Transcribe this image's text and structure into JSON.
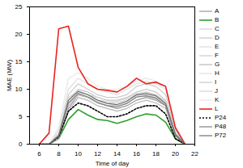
{
  "chart_data": {
    "type": "line",
    "xlabel": "Time of day",
    "ylabel": "MAE (MW)",
    "x": [
      6,
      7,
      8,
      9,
      10,
      11,
      12,
      13,
      14,
      15,
      16,
      17,
      18,
      19,
      20,
      21
    ],
    "xlim": [
      5,
      22
    ],
    "xticks": [
      6,
      8,
      10,
      12,
      14,
      16,
      18,
      20,
      22
    ],
    "ylim": [
      0,
      25
    ],
    "yticks": [
      0,
      5,
      10,
      15,
      20,
      25
    ],
    "grid": false,
    "legend": "right",
    "series": [
      {
        "name": "A",
        "color": "#9a9a9a",
        "line_style": "solid",
        "values": [
          0,
          0,
          1,
          6.5,
          9,
          8.5,
          7.5,
          7,
          6.5,
          7,
          8,
          8.5,
          8,
          7,
          1.5,
          0
        ]
      },
      {
        "name": "B",
        "color": "#2ca02c",
        "line_style": "solid",
        "values": [
          0,
          0,
          1,
          4.5,
          6.3,
          5.3,
          4.5,
          4.3,
          3.8,
          4.3,
          5,
          5.5,
          5.3,
          4,
          1,
          0
        ]
      },
      {
        "name": "C",
        "color": "#d0d0d0",
        "line_style": "solid",
        "values": [
          0,
          0,
          1,
          7,
          9.5,
          9,
          8,
          7.5,
          7.5,
          8,
          9,
          9.5,
          9,
          7.5,
          2,
          0
        ]
      },
      {
        "name": "D",
        "color": "#c4c4c4",
        "line_style": "solid",
        "values": [
          0,
          0,
          1.5,
          8,
          10,
          9.5,
          8.5,
          8,
          8,
          8.5,
          9.5,
          10,
          9.5,
          8,
          2,
          0
        ]
      },
      {
        "name": "E",
        "color": "#dadada",
        "line_style": "solid",
        "values": [
          0,
          0,
          1.2,
          7.5,
          9.3,
          8.5,
          8,
          7.8,
          7.5,
          8,
          8.8,
          9,
          8.5,
          7,
          1.8,
          0
        ]
      },
      {
        "name": "F",
        "color": "#cccccc",
        "line_style": "solid",
        "values": [
          0,
          0,
          2,
          9,
          11,
          10,
          9,
          8.5,
          8.5,
          9,
          10.5,
          11,
          10.5,
          9,
          2.5,
          0
        ]
      },
      {
        "name": "G",
        "color": "#b8b8b8",
        "line_style": "solid",
        "values": [
          0,
          0,
          1,
          6,
          8.5,
          8,
          7,
          6.5,
          6,
          6.5,
          7.5,
          8,
          7.5,
          6.5,
          1.5,
          0
        ]
      },
      {
        "name": "H",
        "color": "#e0e0e0",
        "line_style": "solid",
        "values": [
          0,
          0,
          2.5,
          10,
          12,
          11,
          10,
          9.5,
          9,
          10,
          11,
          11.5,
          11,
          10,
          3,
          0
        ]
      },
      {
        "name": "I",
        "color": "#c8c8c8",
        "line_style": "solid",
        "values": [
          0,
          0,
          1.5,
          7,
          9,
          8.5,
          7.5,
          7,
          7,
          7.5,
          8.5,
          8.8,
          8.2,
          7.2,
          1.6,
          0
        ]
      },
      {
        "name": "J",
        "color": "#d4d4d4",
        "line_style": "solid",
        "values": [
          0,
          0,
          1.8,
          8.5,
          9.8,
          9,
          8.5,
          8,
          7.8,
          8.3,
          9.2,
          9.5,
          9,
          7.8,
          2,
          0
        ]
      },
      {
        "name": "K",
        "color": "#e6e6e6",
        "line_style": "solid",
        "values": [
          0,
          0,
          3,
          12,
          13,
          12,
          10.5,
          10,
          10,
          10.5,
          11.5,
          12,
          11.5,
          10.5,
          3.5,
          0
        ]
      },
      {
        "name": "L",
        "color": "#e8231e",
        "line_style": "solid",
        "values": [
          0,
          2,
          21,
          21.5,
          14,
          11,
          10,
          9.8,
          9.5,
          10.5,
          12,
          11,
          11.3,
          10.5,
          3,
          0
        ]
      },
      {
        "name": "P24",
        "color": "#000000",
        "line_style": "dotted",
        "values": [
          0,
          0,
          1.3,
          6,
          7.5,
          7,
          6,
          5,
          5,
          5.5,
          6.5,
          7,
          7,
          5.5,
          1,
          0
        ]
      },
      {
        "name": "P48",
        "color": "#808080",
        "line_style": "solid",
        "values": [
          0,
          0,
          1.5,
          7.5,
          9.2,
          8.6,
          7.6,
          7,
          6.8,
          7.4,
          8.6,
          8.8,
          8.4,
          7,
          1.6,
          0
        ]
      },
      {
        "name": "P72",
        "color": "#6e6e6e",
        "line_style": "solid",
        "values": [
          0,
          0,
          1.6,
          8,
          9.6,
          9,
          8,
          7.4,
          7.2,
          7.8,
          9,
          9.2,
          8.8,
          7.4,
          1.8,
          0
        ]
      }
    ]
  }
}
